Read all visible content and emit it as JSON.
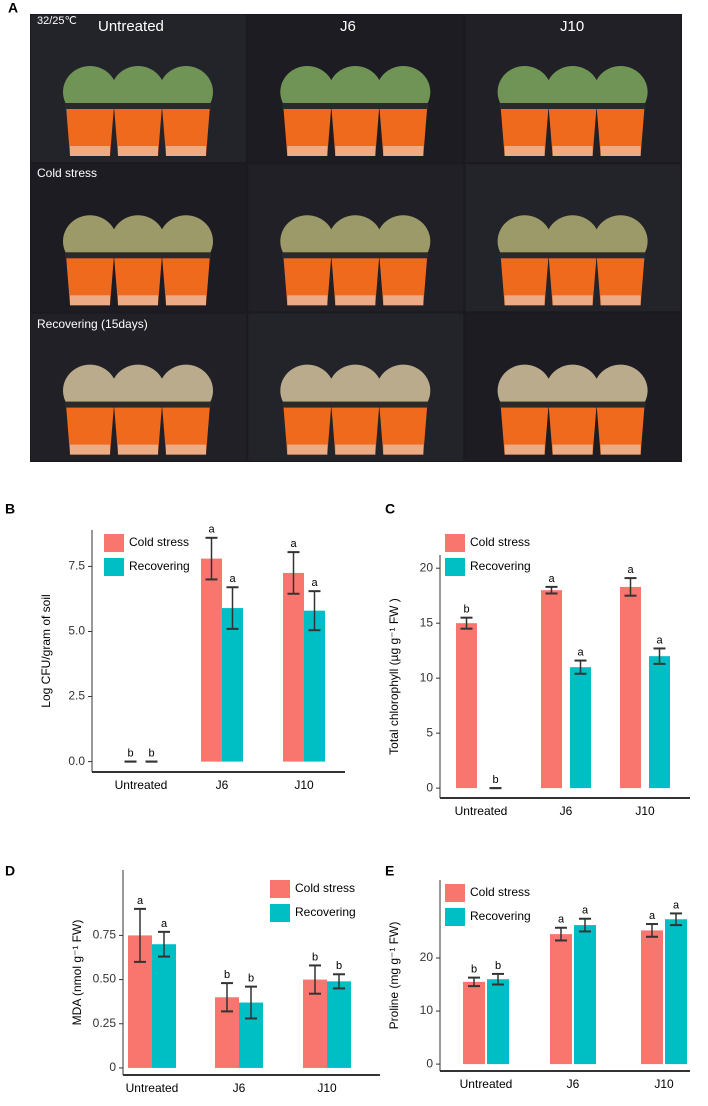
{
  "photo_panel": {
    "label": "A",
    "columns": [
      "Untreated",
      "J6",
      "J10"
    ],
    "rows": [
      "32/25℃",
      "Cold stress",
      "Recovering (15days)"
    ]
  },
  "chart_data": [
    {
      "type": "bar",
      "panel": "B",
      "y_label": "Log CFU/gram of soil",
      "categories": [
        "Untreated",
        "J6",
        "J10"
      ],
      "series": [
        {
          "name": "Cold stress",
          "color": "#f8766d",
          "values": [
            0,
            7.8,
            7.25
          ],
          "errors": [
            0,
            0.8,
            0.8
          ],
          "labels": [
            "b",
            "a",
            "a"
          ]
        },
        {
          "name": "Recovering",
          "color": "#00bfc4",
          "values": [
            0,
            5.9,
            5.8
          ],
          "errors": [
            0,
            0.8,
            0.75
          ],
          "labels": [
            "b",
            "a",
            "a"
          ]
        }
      ],
      "ylim": [
        -0.4,
        8.9
      ],
      "yticks": [
        {
          "value": 0,
          "label": "0.0"
        },
        2.5,
        {
          "value": 5,
          "label": "5.0"
        },
        7.5
      ],
      "legend": "top-left"
    },
    {
      "type": "bar",
      "panel": "C",
      "y_label": "Total chlorophyll  (µg g⁻¹ FW )",
      "categories": [
        "Untreated",
        "J6",
        "J10"
      ],
      "series": [
        {
          "name": "Cold stress",
          "color": "#f8766d",
          "values": [
            15,
            18,
            18.3
          ],
          "errors": [
            0.5,
            0.3,
            0.8
          ],
          "labels": [
            "b",
            "a",
            "a"
          ]
        },
        {
          "name": "Recovering",
          "color": "#00bfc4",
          "values": [
            0,
            11,
            12
          ],
          "errors": [
            0,
            0.6,
            0.7
          ],
          "labels": [
            "b",
            "a",
            "a"
          ]
        }
      ],
      "ylim": [
        -0.9,
        21.2
      ],
      "yticks": [
        0,
        5,
        10,
        15,
        20
      ],
      "legend": "top-left"
    },
    {
      "type": "bar",
      "panel": "D",
      "y_label": "MDA (nmol g⁻¹ FW)",
      "categories": [
        "Untreated",
        "J6",
        "J10"
      ],
      "series": [
        {
          "name": "Cold stress",
          "color": "#f8766d",
          "values": [
            0.75,
            0.4,
            0.5
          ],
          "errors": [
            0.15,
            0.08,
            0.08
          ],
          "labels": [
            "a",
            "b",
            "b"
          ]
        },
        {
          "name": "Recovering",
          "color": "#00bfc4",
          "values": [
            0.7,
            0.37,
            0.49
          ],
          "errors": [
            0.07,
            0.09,
            0.04
          ],
          "labels": [
            "a",
            "b",
            "b"
          ]
        }
      ],
      "ylim": [
        -0.04,
        1.12
      ],
      "yticks": [
        0,
        0.25,
        {
          "value": 0.5,
          "label": "0.50"
        },
        0.75
      ],
      "legend": "top-right"
    },
    {
      "type": "bar",
      "panel": "E",
      "y_label": "Proline  (mg g⁻¹ FW)",
      "categories": [
        "Untreated",
        "J6",
        "J10"
      ],
      "series": [
        {
          "name": "Cold stress",
          "color": "#f8766d",
          "values": [
            15.5,
            24.5,
            25.2
          ],
          "errors": [
            0.8,
            1.2,
            1.2
          ],
          "labels": [
            "b",
            "a",
            "a"
          ]
        },
        {
          "name": "Recovering",
          "color": "#00bfc4",
          "values": [
            16,
            26.2,
            27.3
          ],
          "errors": [
            1,
            1.2,
            1.1
          ],
          "labels": [
            "b",
            "a",
            "a"
          ]
        }
      ],
      "ylim": [
        -1.3,
        34.7
      ],
      "yticks": [
        0,
        10,
        20
      ],
      "legend": "top-left"
    }
  ]
}
